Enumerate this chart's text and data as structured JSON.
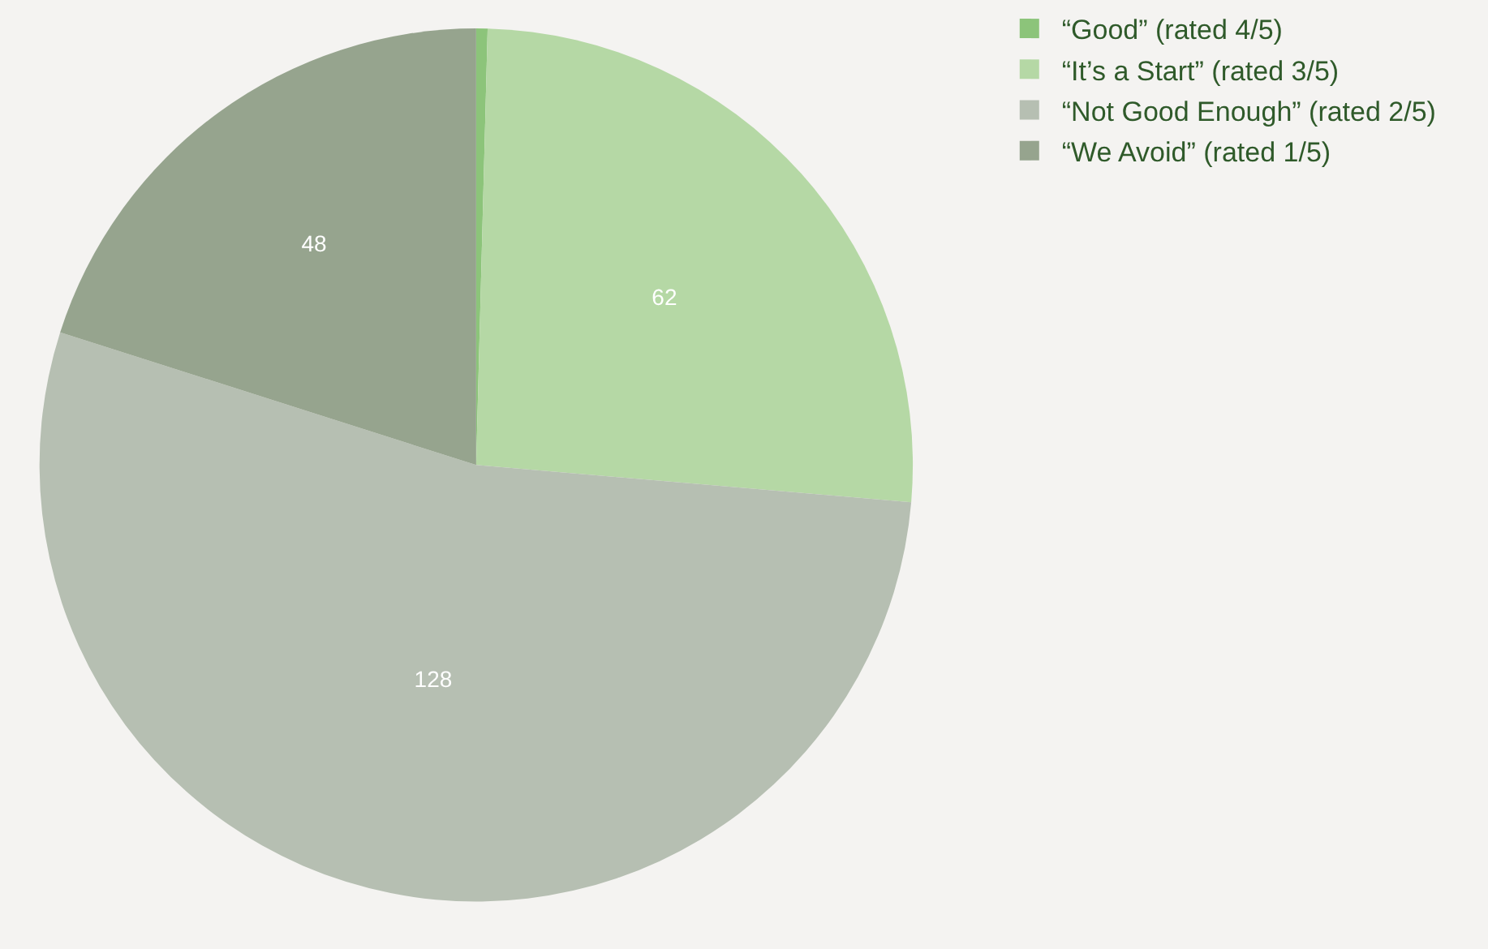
{
  "chart_data": {
    "type": "pie",
    "categories": [
      "“Good” (rated 4/5)",
      "“It’s a Start” (rated 3/5)",
      "“Not Good Enough” (rated 2/5)",
      "“We Avoid” (rated 1/5)"
    ],
    "values": [
      1,
      62,
      128,
      48
    ],
    "value_labels": [
      null,
      "62",
      "128",
      "48"
    ],
    "colors": [
      "#8cc47a",
      "#b5d8a5",
      "#b6bfb2",
      "#96a48e"
    ],
    "legend": "top right"
  }
}
